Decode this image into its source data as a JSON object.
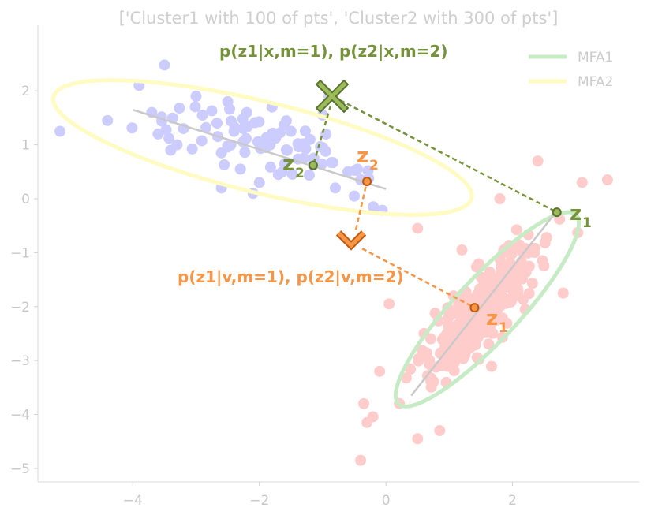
{
  "chart_data": {
    "type": "scatter",
    "title": "['Cluster1 with 100 of pts', 'Cluster2 with 300 of pts']",
    "xlim": [
      -5.5,
      4.0
    ],
    "ylim": [
      -5.25,
      3.1
    ],
    "xticks": [
      -4,
      -2,
      0,
      2
    ],
    "yticks": [
      2,
      1,
      0,
      -1,
      -2,
      -3,
      -4,
      -5
    ],
    "xtick_labels": [
      "−4",
      "−2",
      "0",
      "2"
    ],
    "ytick_labels": [
      "2",
      "1",
      "0",
      "−1",
      "−2",
      "−3",
      "−4",
      "−5"
    ],
    "series": [
      {
        "color": "#ccccff",
        "center": [
          -2.0,
          1.05
        ],
        "count": 100,
        "points": [
          [
            -5.15,
            1.25
          ],
          [
            -3.5,
            2.48
          ],
          [
            -3.9,
            2.1
          ],
          [
            -3.7,
            1.6
          ],
          [
            -3.6,
            1.2
          ],
          [
            -4.4,
            1.45
          ],
          [
            -2.5,
            1.8
          ],
          [
            -3.0,
            1.9
          ],
          [
            -2.2,
            1.6
          ],
          [
            -1.8,
            1.7
          ],
          [
            -3.2,
            1.3
          ],
          [
            -2.6,
            0.85
          ],
          [
            -2.3,
            0.55
          ],
          [
            -2.0,
            0.3
          ],
          [
            -1.7,
            0.45
          ],
          [
            -1.3,
            0.75
          ],
          [
            -1.0,
            0.95
          ],
          [
            -0.6,
            0.5
          ],
          [
            -0.4,
            0.35
          ],
          [
            -0.2,
            -0.15
          ],
          [
            -0.5,
            0.05
          ],
          [
            -0.8,
            0.2
          ],
          [
            -2.6,
            0.2
          ],
          [
            -2.1,
            0.1
          ],
          [
            -3.3,
            1.0
          ],
          [
            -2.9,
            1.55
          ],
          [
            -1.5,
            1.25
          ],
          [
            -1.2,
            1.1
          ],
          [
            -1.9,
            0.95
          ],
          [
            -2.4,
            1.25
          ],
          [
            -1.6,
            0.65
          ],
          [
            -3.4,
            0.9
          ],
          [
            -0.9,
            1.9
          ],
          [
            -1.0,
            1.55
          ]
        ],
        "extra_points_generated": 66
      },
      {
        "color": "#ffcccc",
        "center": [
          1.5,
          -2.05
        ],
        "count": 300,
        "points": [
          [
            0.5,
            -0.55
          ],
          [
            0.05,
            -1.95
          ],
          [
            -0.1,
            -3.2
          ],
          [
            -0.35,
            -3.8
          ],
          [
            -0.3,
            -4.15
          ],
          [
            -0.4,
            -4.85
          ],
          [
            0.85,
            -4.3
          ],
          [
            0.5,
            -4.45
          ],
          [
            3.5,
            0.35
          ],
          [
            3.1,
            0.3
          ],
          [
            2.4,
            0.7
          ],
          [
            2.8,
            -1.75
          ],
          [
            1.2,
            -0.95
          ],
          [
            1.8,
            0.0
          ],
          [
            2.2,
            -2.05
          ]
        ],
        "extra_points_generated": 285
      }
    ],
    "ellipses": [
      {
        "name": "MFA1",
        "color": "#c7ecc5",
        "center": [
          1.6,
          -2.05
        ],
        "semi_axes": [
          2.05,
          0.5
        ],
        "angle_deg": 55
      },
      {
        "name": "MFA2",
        "color": "#fffbc2",
        "center": [
          -1.95,
          0.95
        ],
        "semi_axes": [
          3.4,
          0.72
        ],
        "angle_deg": -16
      }
    ],
    "principal_lines": [
      {
        "from": [
          -4.0,
          1.65
        ],
        "to": [
          0.0,
          0.18
        ]
      },
      {
        "from": [
          0.4,
          -3.65
        ],
        "to": [
          2.65,
          -0.3
        ]
      }
    ],
    "legend": {
      "position": "top-right",
      "entries": [
        {
          "label": "MFA1",
          "color": "#c7ecc5"
        },
        {
          "label": "MFA2",
          "color": "#fffbc2"
        }
      ]
    },
    "annotations": {
      "top_label": "p(z1|x,m=1), p(z2|x,m=2)",
      "bottom_label": "p(z1|v,m=1), p(z2|v,m=2)",
      "green_color": "#76933c",
      "orange_color": "#f79646",
      "x_marker": [
        -0.85,
        1.9
      ],
      "v_marker": [
        -0.55,
        -0.75
      ],
      "green_z2_point": [
        -1.15,
        0.62
      ],
      "green_z1_point": [
        2.7,
        -0.25
      ],
      "orange_z2_point": [
        -0.3,
        0.32
      ],
      "orange_z1_point": [
        1.4,
        -2.02
      ],
      "z_label": "z",
      "sub_1": "1",
      "sub_2": "2"
    }
  }
}
